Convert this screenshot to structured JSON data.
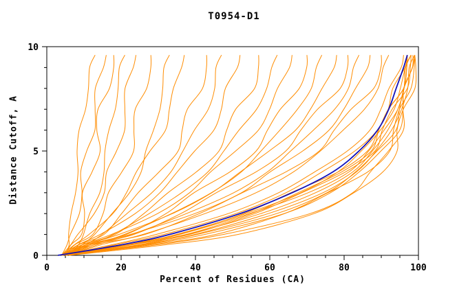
{
  "title": "T0954-D1",
  "axes": {
    "xlabel": "Percent of Residues (CA)",
    "ylabel": "Distance Cutoff, A",
    "xlim": [
      0,
      100
    ],
    "ylim": [
      0,
      10
    ],
    "x_major_ticks": [
      0,
      20,
      40,
      60,
      80,
      100
    ],
    "x_minor_step": 5,
    "y_major_ticks": [
      0,
      5,
      10
    ],
    "y_minor_step": 1
  },
  "colors": {
    "model_curve": "#ff8c00",
    "reference_curve": "#1111bb",
    "frame": "#000000"
  },
  "chart_data": {
    "type": "line",
    "title": "T0954-D1",
    "xlabel": "Percent of Residues (CA)",
    "ylabel": "Distance Cutoff, A",
    "xlim": [
      0,
      100
    ],
    "ylim": [
      0,
      10
    ],
    "legend": "none",
    "grid": false,
    "y_levels": [
      0,
      0.5,
      1,
      2,
      3,
      4,
      5,
      6,
      7,
      8,
      9,
      9.6
    ],
    "orange_series_x": [
      [
        5,
        5.5,
        6,
        7,
        7.5,
        8,
        8.5,
        9,
        10,
        11,
        12,
        13
      ],
      [
        4,
        6,
        7,
        8,
        9,
        10,
        11,
        12,
        13,
        14,
        15,
        16
      ],
      [
        5,
        7,
        8,
        10,
        11,
        12,
        13,
        14,
        15,
        16,
        17,
        18
      ],
      [
        6,
        8,
        10,
        12,
        14,
        15,
        16,
        17,
        18,
        19,
        20,
        21
      ],
      [
        4,
        7,
        9,
        12,
        15,
        17,
        19,
        20,
        21,
        22,
        23,
        24
      ],
      [
        5,
        8,
        11,
        15,
        18,
        20,
        22,
        24,
        25,
        26,
        27,
        28
      ],
      [
        6,
        9,
        13,
        18,
        22,
        25,
        27,
        29,
        30,
        31,
        32,
        33
      ],
      [
        4,
        8,
        12,
        17,
        21,
        25,
        28,
        31,
        33,
        35,
        36,
        37
      ],
      [
        5,
        9,
        14,
        20,
        26,
        30,
        34,
        37,
        39,
        41,
        42,
        43
      ],
      [
        6,
        10,
        15,
        22,
        28,
        33,
        37,
        40,
        43,
        45,
        46,
        47
      ],
      [
        4,
        9,
        15,
        23,
        30,
        36,
        40,
        44,
        47,
        49,
        51,
        52
      ],
      [
        5,
        10,
        17,
        26,
        34,
        40,
        45,
        49,
        52,
        55,
        56,
        57
      ],
      [
        6,
        11,
        18,
        28,
        36,
        43,
        48,
        52,
        56,
        59,
        61,
        62
      ],
      [
        4,
        10,
        18,
        29,
        38,
        45,
        51,
        56,
        60,
        63,
        65,
        66
      ],
      [
        5,
        11,
        20,
        32,
        41,
        49,
        55,
        60,
        64,
        67,
        69,
        70
      ],
      [
        6,
        12,
        21,
        34,
        44,
        52,
        58,
        63,
        67,
        71,
        73,
        74
      ],
      [
        4,
        11,
        20,
        33,
        44,
        53,
        60,
        66,
        71,
        75,
        77,
        78
      ],
      [
        5,
        12,
        22,
        36,
        47,
        56,
        63,
        69,
        74,
        78,
        80,
        81
      ],
      [
        6,
        13,
        23,
        38,
        50,
        59,
        66,
        72,
        77,
        81,
        83,
        84
      ],
      [
        4,
        12,
        23,
        39,
        52,
        61,
        69,
        75,
        80,
        84,
        86,
        87
      ],
      [
        5,
        13,
        25,
        41,
        54,
        64,
        72,
        78,
        83,
        87,
        89,
        90
      ],
      [
        6,
        14,
        26,
        43,
        56,
        66,
        74,
        80,
        85,
        89,
        91,
        92
      ],
      [
        4,
        18,
        30,
        48,
        62,
        73,
        81,
        86,
        90,
        93,
        95,
        96
      ],
      [
        5,
        22,
        36,
        55,
        69,
        79,
        86,
        90,
        93,
        95,
        96,
        97
      ],
      [
        4,
        24,
        38,
        58,
        72,
        82,
        88,
        92,
        94,
        96,
        97,
        98
      ],
      [
        6,
        26,
        41,
        61,
        75,
        84,
        89,
        93,
        95,
        97,
        98,
        98.5
      ],
      [
        5,
        28,
        44,
        64,
        77,
        86,
        91,
        94,
        96,
        97,
        98,
        99
      ],
      [
        4,
        21,
        35,
        54,
        68,
        78,
        85,
        90,
        93,
        95,
        97,
        98
      ],
      [
        6,
        19,
        32,
        50,
        64,
        75,
        83,
        88,
        92,
        94,
        96,
        97
      ],
      [
        5,
        23,
        37,
        56,
        70,
        80,
        87,
        91,
        94,
        96,
        97,
        98
      ],
      [
        4,
        25,
        40,
        60,
        74,
        83,
        89,
        93,
        95,
        97,
        98,
        99
      ],
      [
        6,
        27,
        43,
        63,
        76,
        85,
        90,
        94,
        96,
        97,
        98,
        99
      ],
      [
        5,
        20,
        34,
        53,
        67,
        78,
        85,
        90,
        93,
        95,
        96,
        97
      ],
      [
        4,
        22,
        36,
        55,
        70,
        81,
        87,
        91,
        94,
        96,
        97,
        98
      ],
      [
        5,
        30,
        48,
        70,
        82,
        88,
        92,
        95,
        96,
        97,
        98,
        99
      ],
      [
        6,
        32,
        50,
        72,
        84,
        90,
        93,
        95,
        97,
        98,
        98.5,
        99
      ]
    ],
    "blue_series_x": [
      3,
      20,
      33,
      52,
      66,
      77,
      84,
      89,
      92,
      94,
      96,
      97
    ]
  }
}
